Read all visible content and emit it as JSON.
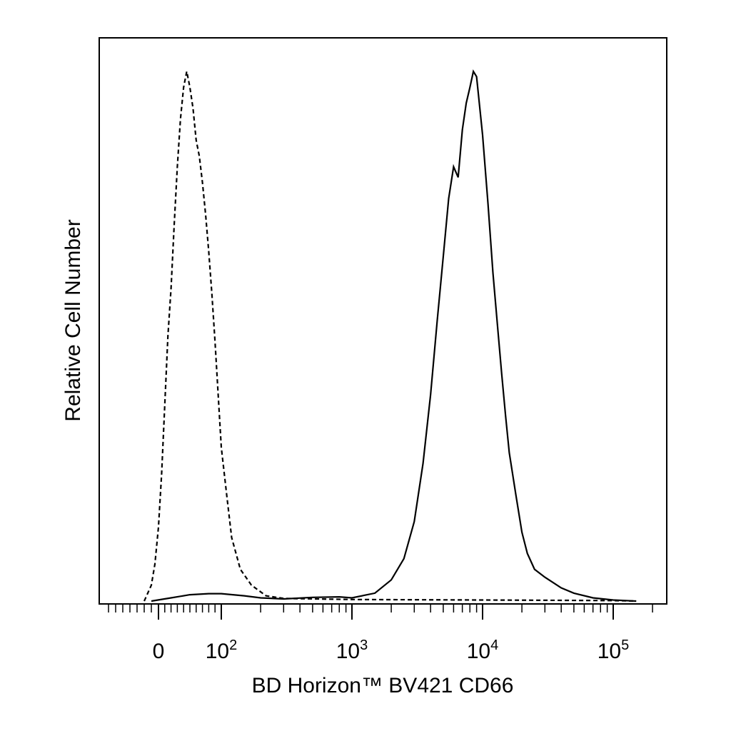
{
  "chart_data": {
    "type": "line",
    "title": "",
    "xlabel": "BD Horizon™ BV421 CD66",
    "ylabel": "Relative Cell Number",
    "x_scale": "biexponential",
    "xlim": [
      -100,
      200000
    ],
    "ylim": [
      0,
      100
    ],
    "grid": false,
    "legend": "none",
    "tick_labels": [
      {
        "value": 0,
        "base": "0",
        "exp": ""
      },
      {
        "value": 100,
        "base": "10",
        "exp": "2"
      },
      {
        "value": 1000,
        "base": "10",
        "exp": "3"
      },
      {
        "value": 10000,
        "base": "10",
        "exp": "4"
      },
      {
        "value": 100000,
        "base": "10",
        "exp": "5"
      }
    ],
    "series": [
      {
        "style": "dashed",
        "color": "#000000",
        "points": [
          [
            -20,
            0
          ],
          [
            -10,
            3
          ],
          [
            -5,
            7
          ],
          [
            0,
            14
          ],
          [
            5,
            24
          ],
          [
            10,
            37
          ],
          [
            15,
            50
          ],
          [
            20,
            59
          ],
          [
            25,
            71
          ],
          [
            30,
            82
          ],
          [
            35,
            91
          ],
          [
            40,
            97
          ],
          [
            45,
            100
          ],
          [
            50,
            97
          ],
          [
            55,
            93
          ],
          [
            60,
            87
          ],
          [
            65,
            84
          ],
          [
            70,
            79
          ],
          [
            75,
            73
          ],
          [
            80,
            66
          ],
          [
            85,
            58
          ],
          [
            90,
            49
          ],
          [
            95,
            39
          ],
          [
            100,
            29
          ],
          [
            110,
            20
          ],
          [
            120,
            12
          ],
          [
            140,
            6
          ],
          [
            170,
            3
          ],
          [
            220,
            1
          ],
          [
            300,
            0.5
          ],
          [
            1000,
            0.3
          ],
          [
            10000,
            0.2
          ],
          [
            100000,
            0.1
          ],
          [
            150000,
            0
          ]
        ]
      },
      {
        "style": "solid",
        "color": "#000000",
        "points": [
          [
            -10,
            0
          ],
          [
            20,
            0.6
          ],
          [
            50,
            1.2
          ],
          [
            80,
            1.4
          ],
          [
            100,
            1.4
          ],
          [
            150,
            1.0
          ],
          [
            200,
            0.6
          ],
          [
            300,
            0.4
          ],
          [
            500,
            0.7
          ],
          [
            800,
            0.8
          ],
          [
            1000,
            0.6
          ],
          [
            1500,
            1.5
          ],
          [
            2000,
            4
          ],
          [
            2500,
            8
          ],
          [
            3000,
            15
          ],
          [
            3500,
            26
          ],
          [
            4000,
            39
          ],
          [
            4500,
            53
          ],
          [
            5000,
            65
          ],
          [
            5500,
            76
          ],
          [
            6000,
            82
          ],
          [
            6500,
            80
          ],
          [
            7000,
            89
          ],
          [
            7500,
            94
          ],
          [
            8000,
            97
          ],
          [
            8500,
            100
          ],
          [
            9000,
            99
          ],
          [
            10000,
            88
          ],
          [
            11000,
            75
          ],
          [
            12000,
            62
          ],
          [
            13000,
            52
          ],
          [
            14000,
            43
          ],
          [
            15000,
            35
          ],
          [
            16000,
            28
          ],
          [
            18000,
            20
          ],
          [
            20000,
            13
          ],
          [
            22000,
            9
          ],
          [
            25000,
            6
          ],
          [
            30000,
            4.5
          ],
          [
            40000,
            2.5
          ],
          [
            50000,
            1.5
          ],
          [
            70000,
            0.6
          ],
          [
            100000,
            0.2
          ],
          [
            150000,
            0
          ]
        ]
      }
    ]
  }
}
